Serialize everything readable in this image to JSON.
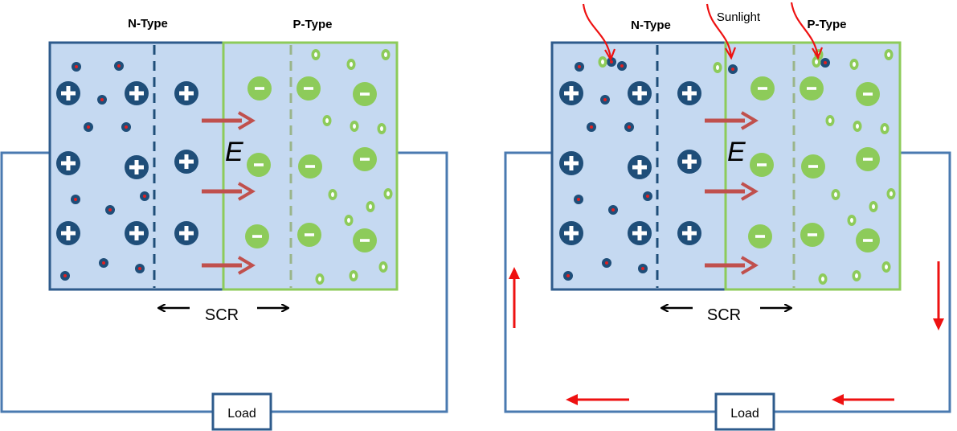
{
  "left_diagram": {
    "n_label": "N-Type",
    "p_label": "P-Type",
    "field_label": "E",
    "scr_label": "SCR",
    "load_label": "Load"
  },
  "right_diagram": {
    "n_label": "N-Type",
    "p_label": "P-Type",
    "field_label": "E",
    "scr_label": "SCR",
    "load_label": "Load",
    "sunlight_label": "Sunlight"
  },
  "colors": {
    "n_region": "#c5d9f1",
    "n_border": "#2e5b8c",
    "p_border": "#8dcb5a",
    "donor_ion": "#1f4e79",
    "acceptor_ion": "#8dcb5a",
    "electron": "#1f4e79",
    "electron_core": "#e02020",
    "hole": "#8dcb5a",
    "field_arrow": "#c0504d",
    "current_arrow": "#ee1111",
    "wire": "#4a7ab0"
  }
}
